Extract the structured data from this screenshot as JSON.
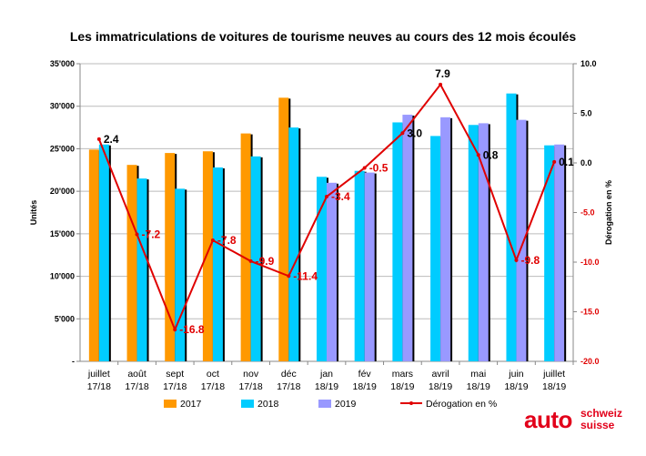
{
  "chart_data": {
    "type": "bar",
    "title": "Les immatriculations de voitures de tourisme neuves au cours des 12 mois écoulés",
    "ylabel": "Unités",
    "y2label": "Dérogation en %",
    "ylim": [
      0,
      35000
    ],
    "y2lim": [
      -20,
      10
    ],
    "yticks": [
      "-",
      "5'000",
      "10'000",
      "15'000",
      "20'000",
      "25'000",
      "30'000",
      "35'000"
    ],
    "y2ticks": [
      "-20.0",
      "-15.0",
      "-10.0",
      "-5.0",
      "0.0",
      "5.0",
      "10.0"
    ],
    "grid": true,
    "legend_placement": "bottom",
    "categories": [
      [
        "juillet",
        "17/18"
      ],
      [
        "août",
        "17/18"
      ],
      [
        "sept",
        "17/18"
      ],
      [
        "oct",
        "17/18"
      ],
      [
        "nov",
        "17/18"
      ],
      [
        "déc",
        "17/18"
      ],
      [
        "jan",
        "18/19"
      ],
      [
        "fév",
        "18/19"
      ],
      [
        "mars",
        "18/19"
      ],
      [
        "avril",
        "18/19"
      ],
      [
        "mai",
        "18/19"
      ],
      [
        "juin",
        "18/19"
      ],
      [
        "juillet",
        "18/19"
      ]
    ],
    "series": [
      {
        "name": "2017",
        "type": "bar",
        "color": "#FF9900",
        "values": [
          24900,
          23100,
          24500,
          24700,
          26800,
          31000,
          null,
          null,
          null,
          null,
          null,
          null,
          null
        ]
      },
      {
        "name": "2018",
        "type": "bar",
        "color": "#00CCFF",
        "values": [
          25500,
          21500,
          20300,
          22800,
          24100,
          27500,
          21700,
          22400,
          28100,
          26500,
          27800,
          31500,
          25400
        ]
      },
      {
        "name": "2019",
        "type": "bar",
        "color": "#9999FF",
        "values": [
          null,
          null,
          null,
          null,
          null,
          null,
          21000,
          22200,
          29000,
          28700,
          28000,
          28400,
          25500
        ]
      },
      {
        "name": "Dérogation en %",
        "type": "line",
        "color": "#E00000",
        "axis": "right",
        "values": [
          2.4,
          -7.2,
          -16.8,
          -7.8,
          -9.9,
          -11.4,
          -3.4,
          -0.5,
          3.0,
          7.9,
          0.8,
          -9.8,
          0.1
        ],
        "labels": [
          "2.4",
          "-7.2",
          "-16.8",
          "-7.8",
          "-9.9",
          "-11.4",
          "-3.4",
          "-0.5",
          "3.0",
          "7.9",
          "0.8",
          "-9.8",
          "0.1"
        ]
      }
    ]
  },
  "logo": {
    "main": "auto",
    "line1": "schweiz",
    "line2": "suisse"
  }
}
